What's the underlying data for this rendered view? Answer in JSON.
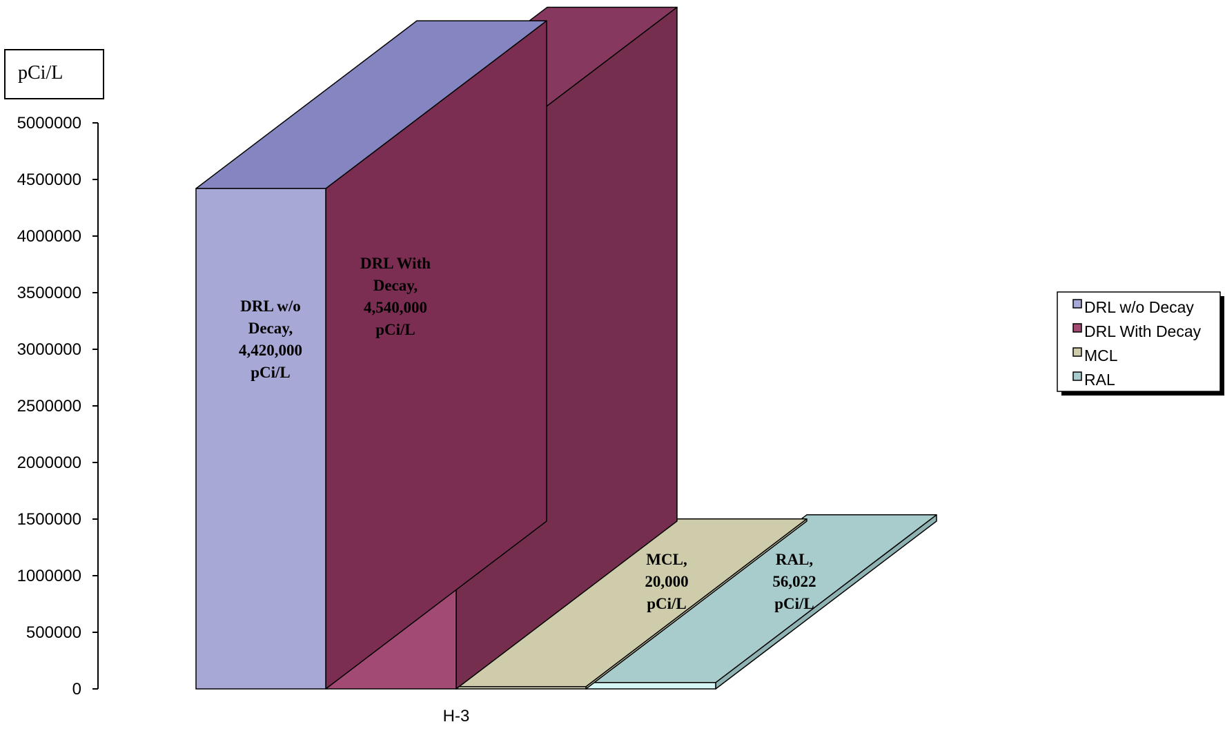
{
  "chart_data": {
    "type": "bar",
    "style": "3d-column",
    "categories": [
      "H-3"
    ],
    "unit_label": "pCi/L",
    "ylim": [
      0,
      5000000
    ],
    "yticks": [
      0,
      500000,
      1000000,
      1500000,
      2000000,
      2500000,
      3000000,
      3500000,
      4000000,
      4500000,
      5000000
    ],
    "ytick_labels": [
      "0",
      "500000",
      "1000000",
      "1500000",
      "2000000",
      "2500000",
      "3000000",
      "3500000",
      "4000000",
      "4500000",
      "5000000"
    ],
    "grid": false,
    "legend_position": "right",
    "series": [
      {
        "name": "DRL w/o Decay",
        "values": [
          4420000
        ],
        "color": "#a7a8d6",
        "label_lines": [
          "DRL w/o",
          "Decay,",
          "4,420,000",
          "pCi/L"
        ]
      },
      {
        "name": "DRL With Decay",
        "values": [
          4540000
        ],
        "color": "#a24a73",
        "label_lines": [
          "DRL With",
          "Decay,",
          "4,540,000",
          "pCi/L"
        ]
      },
      {
        "name": "MCL",
        "values": [
          20000
        ],
        "color": "#ceccaa",
        "label_lines": [
          "MCL,",
          "20,000",
          "pCi/L"
        ]
      },
      {
        "name": "RAL",
        "values": [
          56022
        ],
        "color": "#a8cbcb",
        "label_lines": [
          "RAL,",
          "56,022",
          "pCi/L"
        ]
      }
    ],
    "colors": {
      "drl_wo_side": "#7b2e51",
      "drl_wo_top": "#8585c1",
      "drl_with_side": "#762e4e",
      "drl_with_top": "#87385e",
      "mcl_side": "#d3d0b0",
      "mcl_top": "#ceccaa",
      "ral_side": "#8fb3b3",
      "ral_top": "#a8cbcb",
      "ral_front": "#d6f5f5"
    }
  }
}
